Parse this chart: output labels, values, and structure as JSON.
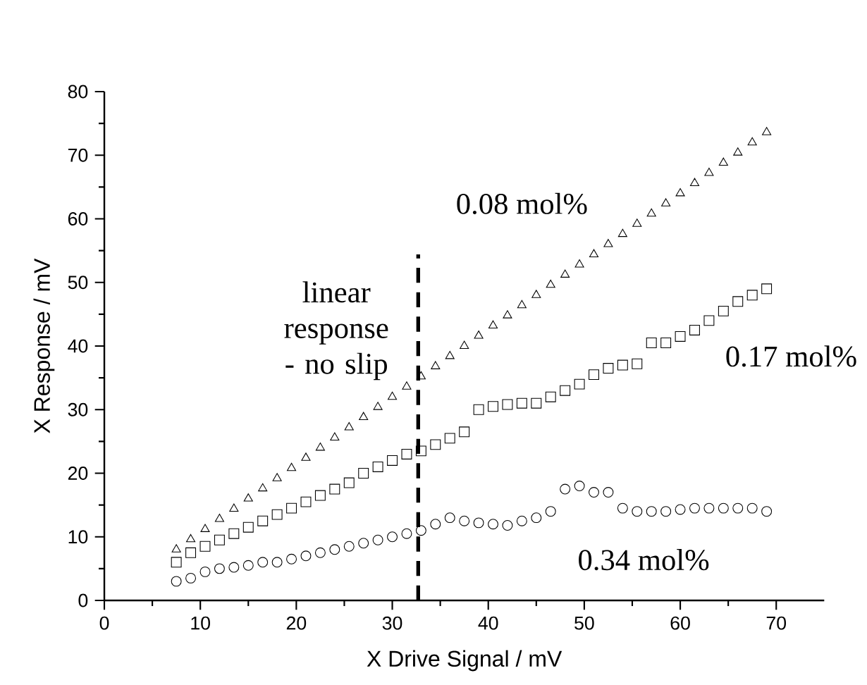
{
  "chart_data": {
    "type": "scatter",
    "xlabel": "X Drive Signal / mV",
    "ylabel": "X Response / mV",
    "xlim": [
      0,
      75
    ],
    "ylim": [
      0,
      80
    ],
    "xticks": [
      0,
      10,
      20,
      30,
      40,
      50,
      60,
      70
    ],
    "yticks": [
      0,
      10,
      20,
      30,
      40,
      50,
      60,
      70,
      80
    ],
    "x": [
      7.5,
      9,
      10.5,
      12,
      13.5,
      15,
      16.5,
      18,
      19.5,
      21,
      22.5,
      24,
      25.5,
      27,
      28.5,
      30,
      31.5,
      33,
      34.5,
      36,
      37.5,
      39,
      40.5,
      42,
      43.5,
      45,
      46.5,
      48,
      49.5,
      51,
      52.5,
      54,
      55.5,
      57,
      58.5,
      60,
      61.5,
      63,
      64.5,
      66,
      67.5,
      69
    ],
    "series": [
      {
        "name": "0.08 mol%",
        "color": "#000000",
        "marker": "triangle",
        "values": [
          8,
          9.6,
          11.2,
          12.8,
          14.4,
          16,
          17.6,
          19.2,
          20.8,
          22.4,
          24,
          25.6,
          27.2,
          28.8,
          30.4,
          32,
          33.6,
          35.2,
          36.8,
          38.4,
          40,
          41.6,
          43.2,
          44.8,
          46.4,
          48,
          49.6,
          51.2,
          52.8,
          54.4,
          56,
          57.6,
          59.2,
          60.8,
          62.4,
          64,
          65.6,
          67.2,
          68.8,
          70.4,
          72,
          73.6
        ]
      },
      {
        "name": "0.17 mol%",
        "color": "#000000",
        "marker": "square",
        "values": [
          6,
          7.5,
          8.5,
          9.5,
          10.5,
          11.5,
          12.5,
          13.5,
          14.5,
          15.5,
          16.5,
          17.5,
          18.5,
          20,
          21,
          22,
          23,
          23.5,
          24.5,
          25.5,
          26.5,
          30,
          30.5,
          30.8,
          31,
          31,
          32,
          33,
          34,
          35.5,
          36.5,
          37,
          37.2,
          40.5,
          40.5,
          41.5,
          42.5,
          44,
          45.5,
          47,
          48,
          49
        ]
      },
      {
        "name": "0.34 mol%",
        "color": "#000000",
        "marker": "circle",
        "values": [
          3,
          3.5,
          4.5,
          5,
          5.2,
          5.5,
          6,
          6,
          6.5,
          7,
          7.5,
          8,
          8.5,
          9,
          9.5,
          10,
          10.5,
          11,
          12,
          13,
          12.5,
          12.2,
          12,
          11.8,
          12.5,
          13,
          14,
          17.5,
          18,
          17,
          17,
          14.5,
          14,
          14,
          14,
          14.3,
          14.5,
          14.5,
          14.5,
          14.5,
          14.5,
          14
        ]
      }
    ],
    "ref_lines": [
      {
        "axis": "x",
        "value": 32.7,
        "label": "linear response - no slip",
        "line_style": "dashed",
        "color": "#000000"
      }
    ],
    "grid": false,
    "legend": false
  }
}
